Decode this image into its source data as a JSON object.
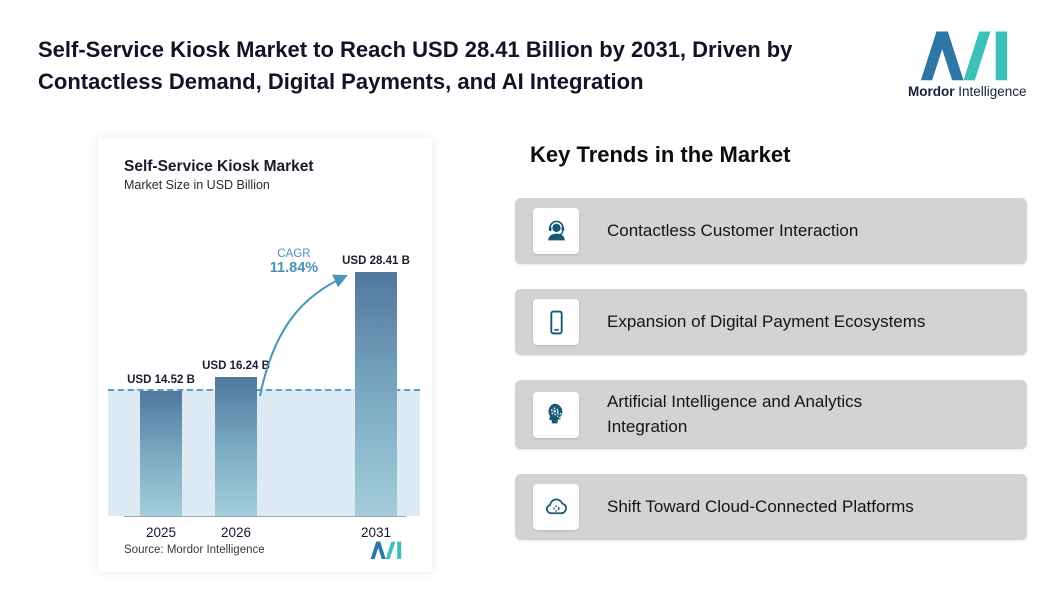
{
  "header": {
    "headline": "Self-Service Kiosk Market to Reach USD 28.41 Billion by 2031, Driven by Contactless Demand, Digital Payments, and AI Integration",
    "brand": {
      "word1": "Mordor",
      "word2": "Intelligence"
    }
  },
  "chart": {
    "title": "Self-Service Kiosk Market",
    "subtitle": "Market Size in USD Billion",
    "cagr_label": "CAGR",
    "cagr_value": "11.84%",
    "source": "Source: Mordor Intelligence"
  },
  "chart_data": {
    "type": "bar",
    "title": "Self-Service Kiosk Market",
    "subtitle": "Market Size in USD Billion",
    "categories": [
      "2025",
      "2026",
      "2031"
    ],
    "values": [
      14.52,
      16.24,
      28.41
    ],
    "value_labels": [
      "USD 14.52 B",
      "USD 16.24 B",
      "USD 28.41 B"
    ],
    "unit": "USD Billion",
    "cagr_percent": 11.84,
    "annotations": [
      "CAGR 11.84%"
    ],
    "reference_line": {
      "style": "dashed",
      "at_value": 14.52
    },
    "ylim": [
      0,
      30
    ],
    "grid": false,
    "legend": false
  },
  "trends": {
    "heading": "Key Trends in the Market",
    "items": [
      {
        "icon": "headset-agent-icon",
        "label": "Contactless Customer Interaction"
      },
      {
        "icon": "smartphone-icon",
        "label": "Expansion of Digital Payment Ecosystems"
      },
      {
        "icon": "head-gears-icon",
        "label": "Artificial Intelligence and Analytics Integration"
      },
      {
        "icon": "cloud-icon",
        "label": "Shift Toward Cloud-Connected Platforms"
      }
    ]
  },
  "colors": {
    "bar_gradient_top": "#4f789e",
    "bar_gradient_bottom": "#a3cdda",
    "accent_teal": "#4793bb",
    "reference_band": "#dde9f3",
    "trend_card_bg": "#d3d3d3",
    "icon_navy": "#175873",
    "logo_blue": "#2e76a6",
    "logo_teal": "#3cc0ba",
    "headline_text": "#101426"
  }
}
